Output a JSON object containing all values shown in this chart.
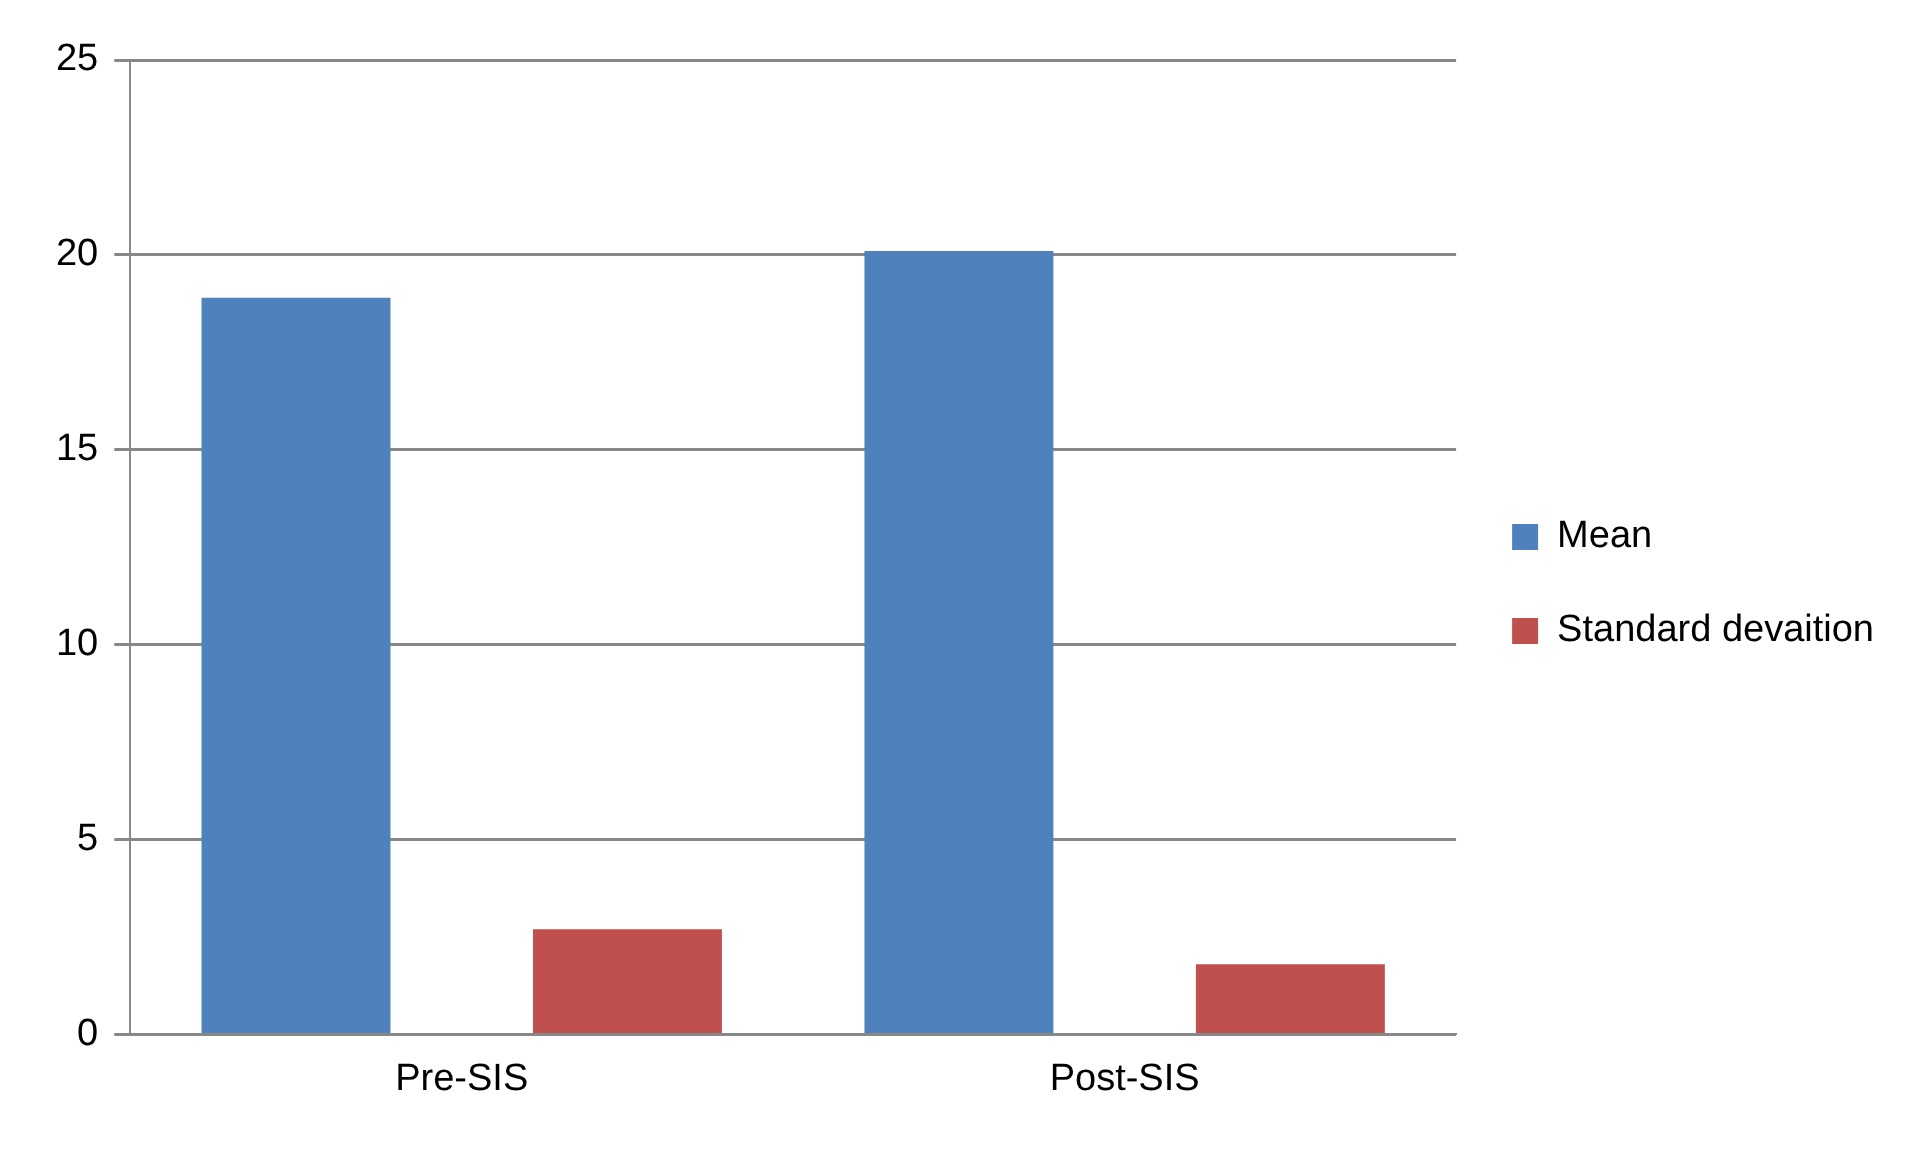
{
  "chart_data": {
    "type": "bar",
    "categories": [
      "Pre-SIS",
      "Post-SIS"
    ],
    "series": [
      {
        "name": "Mean",
        "color": "#4f81bd",
        "values": [
          18.9,
          20.1
        ]
      },
      {
        "name": "Standard devaition",
        "color": "#c0504d",
        "values": [
          2.7,
          1.8
        ]
      }
    ],
    "ylim": [
      0,
      25
    ],
    "yticks": [
      0,
      5,
      10,
      15,
      20,
      25
    ],
    "grid": "y",
    "legend": "right"
  }
}
